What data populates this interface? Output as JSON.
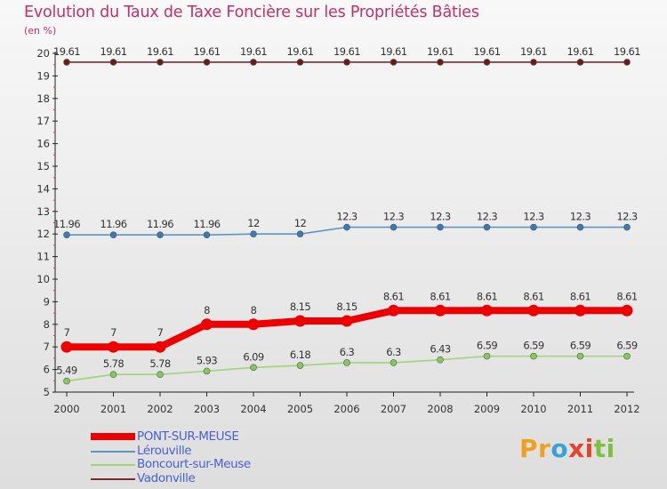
{
  "title": "Evolution du Taux de Taxe Foncière sur les Propriétés Bâties",
  "unit_label": "(en %)",
  "logo": {
    "text": "Proxiti",
    "letters": [
      "P",
      "r",
      "o",
      "x",
      "i",
      "t",
      "i"
    ],
    "colors": [
      "#f0a020",
      "#f0a020",
      "#3aa0d8",
      "#e8402a",
      "#e8402a",
      "#7cc040",
      "#7cc040"
    ]
  },
  "chart_data": {
    "type": "line",
    "title": "Evolution du Taux de Taxe Foncière sur les Propriétés Bâties",
    "ylabel": "(en %)",
    "xlabel": "",
    "ylim": [
      5,
      20
    ],
    "yticks": [
      5,
      6,
      7,
      8,
      9,
      10,
      11,
      12,
      13,
      14,
      15,
      16,
      17,
      18,
      19,
      20
    ],
    "categories": [
      "2000",
      "2001",
      "2002",
      "2003",
      "2004",
      "2005",
      "2006",
      "2007",
      "2008",
      "2009",
      "2010",
      "2011",
      "2012"
    ],
    "series": [
      {
        "name": "Vadonville",
        "color": "#7a2a2a",
        "marker": "#6a1c1c",
        "values": [
          19.61,
          19.61,
          19.61,
          19.61,
          19.61,
          19.61,
          19.61,
          19.61,
          19.61,
          19.61,
          19.61,
          19.61,
          19.61
        ],
        "labels": [
          "19.61",
          "19.61",
          "19.61",
          "19.61",
          "19.61",
          "19.61",
          "19.61",
          "19.61",
          "19.61",
          "19.61",
          "19.61",
          "19.61",
          "19.61"
        ],
        "label_pos": "above"
      },
      {
        "name": "Lérouville",
        "color": "#5e95c4",
        "marker": "#3d7ab5",
        "values": [
          11.96,
          11.96,
          11.96,
          11.96,
          12,
          12,
          12.3,
          12.3,
          12.3,
          12.3,
          12.3,
          12.3,
          12.3
        ],
        "labels": [
          "11.96",
          "11.96",
          "11.96",
          "11.96",
          "12",
          "12",
          "12.3",
          "12.3",
          "12.3",
          "12.3",
          "12.3",
          "12.3",
          "12.3"
        ],
        "label_pos": "above"
      },
      {
        "name": "PONT-SUR-MEUSE",
        "color": "#ee0000",
        "marker": "#ee0000",
        "highlight": true,
        "values": [
          7,
          7,
          7,
          8,
          8,
          8.15,
          8.15,
          8.61,
          8.61,
          8.61,
          8.61,
          8.61,
          8.61
        ],
        "labels": [
          "7",
          "7",
          "7",
          "8",
          "8",
          "8.15",
          "8.15",
          "8.61",
          "8.61",
          "8.61",
          "8.61",
          "8.61",
          "8.61"
        ],
        "label_pos": "above"
      },
      {
        "name": "Boncourt-sur-Meuse",
        "color": "#9ed47a",
        "marker": "#86c85a",
        "values": [
          5.49,
          5.78,
          5.78,
          5.93,
          6.09,
          6.18,
          6.3,
          6.3,
          6.43,
          6.59,
          6.59,
          6.59,
          6.59
        ],
        "labels": [
          "5.49",
          "5.78",
          "5.78",
          "5.93",
          "6.09",
          "6.18",
          "6.3",
          "6.3",
          "6.43",
          "6.59",
          "6.59",
          "6.59",
          "6.59"
        ],
        "label_pos": "above"
      }
    ],
    "legend": {
      "position": "bottom-left",
      "entries": [
        "PONT-SUR-MEUSE",
        "Lérouville",
        "Boncourt-sur-Meuse",
        "Vadonville"
      ],
      "colors": [
        "#ee0000",
        "#5e95c4",
        "#9ed47a",
        "#7a2a2a"
      ]
    }
  }
}
